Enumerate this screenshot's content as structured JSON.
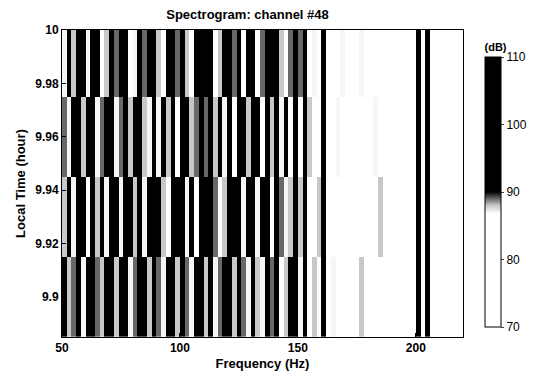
{
  "chart_data": {
    "type": "heatmap",
    "title": "Spectrogram: channel #48",
    "x_label": "Frequency (Hz)",
    "y_label": "Local Time (hour)",
    "x": [
      51,
      53,
      55,
      57,
      59,
      61,
      63,
      65,
      67,
      69,
      71,
      73,
      75,
      77,
      79,
      81,
      83,
      85,
      87,
      89,
      91,
      93,
      95,
      97,
      99,
      101,
      103,
      105,
      107,
      109,
      111,
      113,
      115,
      117,
      119,
      121,
      123,
      125,
      127,
      129,
      131,
      133,
      135,
      137,
      139,
      141,
      143,
      145,
      147,
      149,
      151,
      153,
      155,
      157,
      159,
      161,
      163,
      165,
      167,
      169,
      171,
      173,
      175,
      177,
      179,
      181,
      183,
      185,
      187,
      189,
      191,
      193,
      195,
      197,
      199,
      201,
      203,
      205,
      207,
      209,
      211,
      213,
      215,
      217,
      219
    ],
    "y": [
      9.9,
      9.93,
      9.96,
      9.99
    ],
    "z": [
      [
        90,
        88,
        89,
        100,
        87,
        91,
        101,
        89,
        88,
        90,
        100,
        88,
        90,
        99,
        87,
        89,
        100,
        91,
        88,
        100,
        89,
        87,
        90,
        100,
        88,
        101,
        89,
        87,
        90,
        99,
        88,
        100,
        87,
        89,
        91,
        100,
        88,
        101,
        89,
        87,
        100,
        88,
        87,
        99,
        89,
        100,
        86,
        88,
        90,
        100,
        87,
        99,
        86,
        88,
        85,
        98,
        84,
        87,
        83,
        86,
        82,
        85,
        80,
        88,
        83,
        79,
        86,
        81,
        84,
        80,
        82,
        85,
        79,
        83,
        86,
        101,
        84,
        100,
        81,
        83,
        80,
        84,
        78,
        82,
        79
      ],
      [
        88,
        91,
        87,
        101,
        90,
        86,
        100,
        88,
        91,
        87,
        99,
        90,
        87,
        100,
        91,
        88,
        101,
        87,
        90,
        99,
        90,
        88,
        86,
        101,
        91,
        100,
        87,
        90,
        86,
        100,
        91,
        99,
        89,
        86,
        88,
        101,
        90,
        100,
        87,
        90,
        99,
        87,
        90,
        100,
        86,
        99,
        89,
        87,
        88,
        101,
        88,
        100,
        84,
        86,
        88,
        99,
        86,
        82,
        85,
        83,
        84,
        80,
        86,
        82,
        79,
        85,
        83,
        88,
        80,
        84,
        86,
        81,
        84,
        80,
        83,
        100,
        82,
        101,
        85,
        80,
        83,
        79,
        85,
        81,
        84
      ],
      [
        89,
        87,
        91,
        100,
        88,
        90,
        99,
        87,
        89,
        91,
        101,
        87,
        89,
        100,
        88,
        90,
        99,
        88,
        87,
        100,
        87,
        90,
        88,
        99,
        86,
        100,
        90,
        88,
        89,
        101,
        89,
        101,
        88,
        90,
        87,
        99,
        86,
        100,
        90,
        88,
        100,
        90,
        86,
        101,
        88,
        100,
        87,
        90,
        86,
        99,
        86,
        101,
        88,
        84,
        86,
        100,
        83,
        85,
        87,
        84,
        80,
        86,
        83,
        79,
        85,
        81,
        87,
        82,
        84,
        79,
        83,
        79,
        86,
        82,
        80,
        99,
        85,
        100,
        82,
        84,
        81,
        83,
        80,
        85,
        78
      ],
      [
        87,
        90,
        88,
        99,
        91,
        87,
        100,
        90,
        86,
        88,
        100,
        89,
        91,
        101,
        86,
        87,
        100,
        89,
        90,
        101,
        88,
        86,
        91,
        100,
        89,
        99,
        88,
        86,
        90,
        100,
        90,
        100,
        86,
        88,
        90,
        101,
        89,
        99,
        86,
        91,
        101,
        86,
        89,
        100,
        90,
        101,
        88,
        86,
        89,
        100,
        89,
        100,
        85,
        87,
        83,
        101,
        86,
        84,
        82,
        87,
        85,
        81,
        84,
        87,
        80,
        83,
        79,
        86,
        82,
        85,
        80,
        84,
        82,
        86,
        81,
        101,
        83,
        99,
        84,
        82,
        84,
        80,
        83,
        79,
        82
      ]
    ],
    "xlim": [
      50,
      220
    ],
    "ylim": [
      9.885,
      10
    ],
    "xticks": [
      50,
      100,
      150,
      200
    ],
    "yticks": [
      9.9,
      9.92,
      9.94,
      9.96,
      9.98,
      10
    ],
    "colorbar": {
      "title": "(dB)",
      "range": [
        70,
        110
      ],
      "ticks": [
        70,
        80,
        90,
        100,
        110
      ]
    }
  }
}
